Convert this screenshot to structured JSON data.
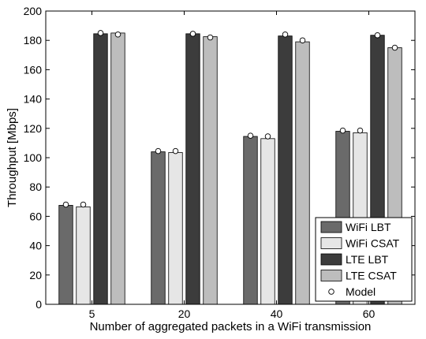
{
  "chart_data": {
    "type": "bar",
    "xlabel": "Number of aggregated packets in a WiFi transmission",
    "ylabel": "Throughput [Mbps]",
    "categories": [
      "5",
      "20",
      "40",
      "60"
    ],
    "ylim": [
      0,
      200
    ],
    "yticks": [
      0,
      20,
      40,
      60,
      80,
      100,
      120,
      140,
      160,
      180,
      200
    ],
    "grid": false,
    "legend_position": "bottom-right",
    "series": [
      {
        "name": "WiFi LBT",
        "color": "#6a6a6a",
        "values": [
          67.5,
          104,
          114.5,
          118
        ],
        "model": [
          68,
          104.5,
          115,
          118.5
        ]
      },
      {
        "name": "WiFi CSAT",
        "color": "#e6e6e6",
        "values": [
          66.5,
          103.5,
          113,
          117
        ],
        "model": [
          68,
          104.5,
          114.5,
          118.5
        ]
      },
      {
        "name": "LTE LBT",
        "color": "#3c3c3c",
        "values": [
          184.5,
          184.5,
          183,
          183.5
        ],
        "model": [
          185,
          184.5,
          184,
          183.5
        ]
      },
      {
        "name": "LTE CSAT",
        "color": "#bdbdbd",
        "values": [
          185,
          182.5,
          179,
          175
        ],
        "model": [
          184,
          182,
          180,
          175
        ]
      }
    ],
    "model_label": "Model"
  }
}
